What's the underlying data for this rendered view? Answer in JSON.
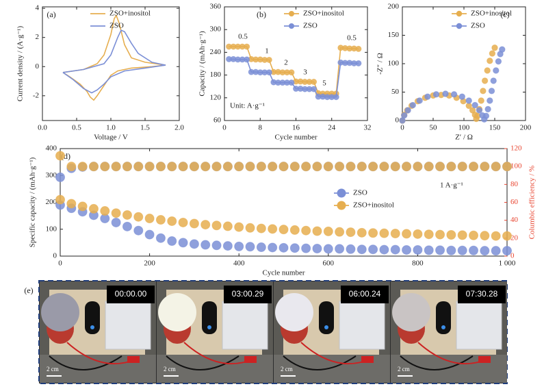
{
  "chart_data": [
    {
      "type": "line",
      "panel_label": "(a)",
      "xlabel": "Voltage / V",
      "ylabel": "Current density / (A·g⁻¹)",
      "xlim": [
        0,
        2
      ],
      "xticks": [
        {
          "value": 0,
          "label": "0.0"
        },
        0.5,
        {
          "value": 1,
          "label": "1.0"
        },
        1.5,
        {
          "value": 2,
          "label": "2.0"
        }
      ],
      "ylim": [
        -3.7,
        4.1
      ],
      "yticks": [
        -2,
        0,
        2,
        4
      ],
      "legend": "upper right",
      "series": [
        {
          "name": "ZSO+inositol",
          "color": "#e6ae4f",
          "x": [
            0.3,
            0.6,
            0.8,
            0.9,
            1.0,
            1.05,
            1.08,
            1.12,
            1.2,
            1.3,
            1.5,
            1.8,
            1.6,
            1.3,
            1.1,
            1.0,
            0.9,
            0.8,
            0.75,
            0.7,
            0.65,
            0.55,
            0.4,
            0.3
          ],
          "values": [
            -0.4,
            -0.2,
            0.2,
            0.8,
            2.2,
            3.3,
            3.5,
            3.0,
            1.5,
            0.6,
            0.3,
            0.1,
            0.0,
            -0.1,
            -0.3,
            -0.6,
            -1.3,
            -2.0,
            -2.3,
            -2.1,
            -1.7,
            -1.2,
            -0.7,
            -0.4
          ]
        },
        {
          "name": "ZSO",
          "color": "#7b8fd6",
          "x": [
            0.3,
            0.6,
            0.9,
            1.0,
            1.1,
            1.15,
            1.2,
            1.3,
            1.4,
            1.6,
            1.8,
            1.5,
            1.2,
            1.0,
            0.9,
            0.8,
            0.72,
            0.6,
            0.45,
            0.3
          ],
          "values": [
            -0.4,
            -0.2,
            0.2,
            0.8,
            2.0,
            2.5,
            2.4,
            1.6,
            0.9,
            0.3,
            0.1,
            -0.1,
            -0.3,
            -0.7,
            -1.2,
            -1.6,
            -1.8,
            -1.5,
            -0.9,
            -0.4
          ]
        }
      ]
    },
    {
      "type": "line-marker",
      "panel_label": "(b)",
      "xlabel": "Cycle number",
      "ylabel": "Capacity / (mAh·g⁻¹)",
      "xlim": [
        0,
        32
      ],
      "xticks": [
        0,
        8,
        16,
        24,
        32
      ],
      "ylim": [
        60,
        360
      ],
      "yticks": [
        60,
        120,
        180,
        240,
        300,
        360
      ],
      "legend": "upper right",
      "annotations": [
        "0.5",
        "1",
        "2",
        "3",
        "5",
        "0.5",
        "Unit: A·g⁻¹"
      ],
      "x": [
        1,
        2,
        3,
        4,
        5,
        6,
        7,
        8,
        9,
        10,
        11,
        12,
        13,
        14,
        15,
        16,
        17,
        18,
        19,
        20,
        21,
        22,
        23,
        24,
        25,
        26,
        27,
        28,
        29,
        30
      ],
      "series": [
        {
          "name": "ZSO+inositol",
          "color": "#e6ae4f",
          "values": [
            255,
            255,
            255,
            255,
            255,
            222,
            221,
            221,
            220,
            220,
            188,
            188,
            187,
            187,
            187,
            163,
            163,
            162,
            162,
            162,
            132,
            131,
            131,
            131,
            131,
            252,
            251,
            250,
            250,
            249
          ]
        },
        {
          "name": "ZSO",
          "color": "#7b8fd6",
          "values": [
            222,
            222,
            221,
            221,
            221,
            188,
            188,
            187,
            187,
            187,
            161,
            160,
            160,
            160,
            160,
            144,
            144,
            143,
            143,
            143,
            123,
            123,
            122,
            122,
            122,
            213,
            212,
            212,
            211,
            211
          ]
        }
      ]
    },
    {
      "type": "scatter",
      "panel_label": "(c)",
      "xlabel": "Z′ / Ω",
      "ylabel": "-Z″ / Ω",
      "xlim": [
        0,
        200
      ],
      "xticks": [
        0,
        50,
        100,
        150,
        200
      ],
      "ylim": [
        0,
        200
      ],
      "yticks": [
        0,
        50,
        100,
        150,
        200
      ],
      "legend": "upper right",
      "series": [
        {
          "name": "ZSO+inositol",
          "color": "#e6ae4f",
          "x": [
            0,
            3,
            8,
            15,
            25,
            37,
            50,
            63,
            76,
            88,
            99,
            108,
            114,
            118,
            120,
            122,
            125,
            128,
            131,
            134,
            138,
            142,
            146,
            150
          ],
          "values": [
            0,
            10,
            18,
            26,
            34,
            40,
            44,
            45,
            44,
            40,
            34,
            26,
            18,
            10,
            3,
            8,
            20,
            35,
            52,
            70,
            88,
            105,
            118,
            128
          ]
        },
        {
          "name": "ZSO",
          "color": "#7b8fd6",
          "x": [
            0,
            3,
            9,
            17,
            28,
            41,
            55,
            70,
            84,
            97,
            108,
            118,
            125,
            130,
            133,
            136,
            139,
            142,
            145,
            148,
            152,
            156,
            159,
            162
          ],
          "values": [
            0,
            9,
            18,
            27,
            35,
            42,
            46,
            47,
            46,
            42,
            35,
            27,
            18,
            9,
            2,
            8,
            20,
            35,
            52,
            70,
            88,
            104,
            117,
            125
          ]
        }
      ]
    },
    {
      "type": "scatter",
      "panel_label": "(d)",
      "xlabel": "Cycle number",
      "ylabel": "Specific capacity / (mAh·g⁻¹)",
      "y2label": "Columbic efficiency / %",
      "y2_color": "#e8432e",
      "xlim": [
        0,
        1000
      ],
      "xticks": [
        0,
        200,
        400,
        600,
        800,
        {
          "value": 1000,
          "label": "1 000"
        }
      ],
      "ylim": [
        0,
        400
      ],
      "yticks": [
        0,
        100,
        200,
        300,
        400
      ],
      "y2lim": [
        0,
        120
      ],
      "y2ticks": [
        0,
        20,
        40,
        60,
        80,
        100,
        120
      ],
      "legend": "center right",
      "annotations": [
        "1 A·g⁻¹"
      ],
      "x": [
        0,
        25,
        50,
        75,
        100,
        125,
        150,
        175,
        200,
        225,
        250,
        275,
        300,
        325,
        350,
        375,
        400,
        425,
        450,
        475,
        500,
        525,
        550,
        575,
        600,
        625,
        650,
        675,
        700,
        725,
        750,
        775,
        800,
        825,
        850,
        875,
        900,
        925,
        950,
        975,
        1000
      ],
      "series": [
        {
          "name": "ZSO",
          "color": "#7b8fd6",
          "values": [
            190,
            178,
            165,
            152,
            140,
            125,
            110,
            95,
            80,
            67,
            56,
            50,
            45,
            42,
            40,
            38,
            36,
            35,
            33,
            32,
            31,
            30,
            29,
            28,
            27,
            27,
            26,
            25,
            25,
            24,
            24,
            23,
            23,
            22,
            22,
            21,
            21,
            21,
            20,
            20,
            20
          ]
        },
        {
          "name": "ZSO+inositol",
          "color": "#e6ae4f",
          "values": [
            210,
            195,
            185,
            176,
            168,
            160,
            153,
            146,
            140,
            135,
            130,
            125,
            121,
            117,
            114,
            111,
            108,
            105,
            103,
            101,
            99,
            97,
            95,
            93,
            92,
            90,
            89,
            87,
            86,
            85,
            84,
            83,
            82,
            81,
            80,
            79,
            78,
            77,
            76,
            75,
            75
          ]
        },
        {
          "color": "#7b8fd6",
          "axis": "y2",
          "values": [
            88,
            98,
            99.5,
            100,
            100,
            100,
            100,
            100,
            100,
            100,
            100,
            100,
            100,
            100,
            100,
            100,
            100,
            100,
            100,
            100,
            100,
            100,
            100,
            100,
            100,
            100,
            100,
            100,
            100,
            100,
            100,
            100,
            100,
            100,
            100,
            100,
            100,
            100,
            100,
            100,
            100
          ]
        },
        {
          "color": "#e6ae4f",
          "axis": "y2",
          "values": [
            112,
            100,
            100,
            100,
            100,
            100,
            100,
            100,
            100,
            100,
            100,
            100,
            100,
            100,
            100,
            100,
            100,
            100,
            100,
            100,
            100,
            100,
            100,
            100,
            100,
            100,
            100,
            100,
            100,
            100,
            100,
            100,
            100,
            100,
            100,
            100,
            100,
            100,
            100,
            100,
            100
          ]
        }
      ]
    }
  ],
  "photo_panel": {
    "label": "(e)",
    "frames": [
      {
        "timer": "00:00.00",
        "scale": "2 cm"
      },
      {
        "timer": "03:00.29",
        "scale": "2 cm"
      },
      {
        "timer": "06:00.24",
        "scale": "2 cm"
      },
      {
        "timer": "07:30.28",
        "scale": "2 cm"
      }
    ]
  }
}
